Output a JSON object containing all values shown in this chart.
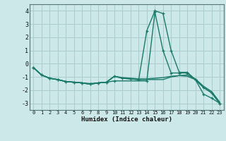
{
  "title": "",
  "xlabel": "Humidex (Indice chaleur)",
  "ylabel": "",
  "bg_color": "#cce8e8",
  "grid_color": "#aacccc",
  "line_color": "#1a7a6a",
  "xlim": [
    -0.5,
    23.5
  ],
  "ylim": [
    -3.5,
    4.5
  ],
  "yticks": [
    -3,
    -2,
    -1,
    0,
    1,
    2,
    3,
    4
  ],
  "xticks": [
    0,
    1,
    2,
    3,
    4,
    5,
    6,
    7,
    8,
    9,
    10,
    11,
    12,
    13,
    14,
    15,
    16,
    17,
    18,
    19,
    20,
    21,
    22,
    23
  ],
  "series": [
    {
      "x": [
        0,
        1,
        2,
        3,
        4,
        5,
        6,
        7,
        8,
        9,
        10,
        11,
        12,
        13,
        14,
        15,
        16,
        17,
        18,
        19,
        20,
        21,
        22,
        23
      ],
      "y": [
        -0.3,
        -0.85,
        -1.1,
        -1.2,
        -1.35,
        -1.4,
        -1.45,
        -1.55,
        -1.45,
        -1.4,
        -0.95,
        -1.1,
        -1.15,
        -1.2,
        2.5,
        4.0,
        3.8,
        1.0,
        -0.65,
        -0.65,
        -1.2,
        -1.8,
        -2.2,
        -3.0
      ],
      "marker": "+",
      "lw": 1.0
    },
    {
      "x": [
        0,
        1,
        2,
        3,
        4,
        5,
        6,
        7,
        8,
        9,
        10,
        11,
        12,
        13,
        14,
        15,
        16,
        17,
        18,
        19,
        20,
        21,
        22,
        23
      ],
      "y": [
        -0.3,
        -0.85,
        -1.1,
        -1.2,
        -1.35,
        -1.4,
        -1.45,
        -1.55,
        -1.45,
        -1.4,
        -0.95,
        -1.1,
        -1.15,
        -1.2,
        -1.2,
        -1.2,
        -1.2,
        -1.0,
        -0.9,
        -0.95,
        -1.2,
        -1.8,
        -2.2,
        -3.0
      ],
      "marker": null,
      "lw": 1.0
    },
    {
      "x": [
        0,
        1,
        2,
        3,
        4,
        5,
        6,
        7,
        8,
        9,
        10,
        11,
        12,
        13,
        14,
        15,
        16,
        17,
        18,
        19,
        20,
        21,
        22,
        23
      ],
      "y": [
        -0.3,
        -0.85,
        -1.1,
        -1.2,
        -1.35,
        -1.4,
        -1.45,
        -1.5,
        -1.45,
        -1.4,
        -0.95,
        -1.05,
        -1.1,
        -1.15,
        -1.15,
        -1.1,
        -1.05,
        -0.95,
        -0.9,
        -0.85,
        -1.15,
        -1.7,
        -2.1,
        -2.9
      ],
      "marker": null,
      "lw": 1.0
    },
    {
      "x": [
        0,
        1,
        2,
        3,
        4,
        5,
        6,
        7,
        8,
        9,
        10,
        14,
        15,
        16,
        17,
        18,
        19,
        20,
        21,
        22,
        23
      ],
      "y": [
        -0.3,
        -0.85,
        -1.1,
        -1.2,
        -1.35,
        -1.4,
        -1.45,
        -1.55,
        -1.45,
        -1.4,
        -1.3,
        -1.3,
        3.9,
        1.0,
        -0.7,
        -0.7,
        -0.7,
        -1.2,
        -2.3,
        -2.6,
        -3.0
      ],
      "marker": "+",
      "lw": 1.0
    }
  ]
}
